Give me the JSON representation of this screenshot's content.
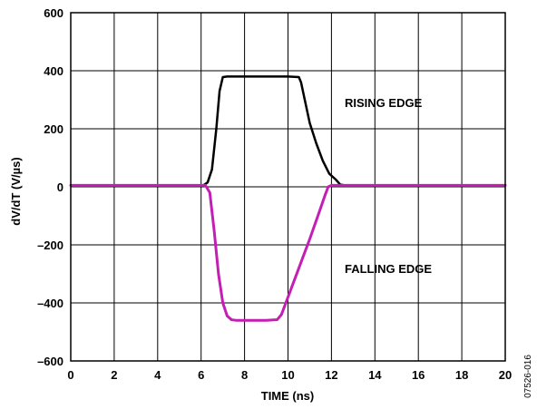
{
  "chart_data": {
    "type": "line",
    "title": "",
    "xlabel": "TIME (ns)",
    "ylabel": "dV/dT (V/µs)",
    "xlim": [
      0,
      20
    ],
    "ylim": [
      -600,
      600
    ],
    "x_ticks": [
      0,
      2,
      4,
      6,
      8,
      10,
      12,
      14,
      16,
      18,
      20
    ],
    "y_ticks": [
      600,
      400,
      200,
      0,
      -200,
      -400,
      -600
    ],
    "y_tick_labels": [
      "600",
      "400",
      "200",
      "0",
      "–200",
      "–400",
      "–600"
    ],
    "grid": true,
    "series": [
      {
        "name": "RISING EDGE",
        "color": "#000000",
        "x": [
          0,
          6.1,
          6.3,
          6.5,
          6.7,
          6.85,
          7.0,
          7.2,
          8,
          9,
          10,
          10.5,
          10.6,
          10.8,
          11.0,
          11.3,
          11.6,
          11.9,
          12.2,
          12.4,
          12.6,
          13,
          20
        ],
        "values": [
          5,
          5,
          15,
          60,
          200,
          330,
          378,
          380,
          380,
          380,
          380,
          378,
          360,
          290,
          220,
          150,
          90,
          45,
          25,
          8,
          5,
          5,
          5
        ]
      },
      {
        "name": "FALLING EDGE",
        "color": "#c41fb4",
        "x": [
          0,
          6.2,
          6.4,
          6.6,
          6.8,
          7.0,
          7.2,
          7.4,
          7.6,
          8,
          9,
          9.5,
          9.7,
          9.9,
          10.2,
          10.6,
          11.0,
          11.4,
          11.7,
          11.85,
          12.0,
          20
        ],
        "values": [
          5,
          5,
          -20,
          -150,
          -300,
          -400,
          -445,
          -458,
          -460,
          -460,
          -460,
          -458,
          -440,
          -400,
          -340,
          -260,
          -180,
          -95,
          -30,
          0,
          5,
          5
        ]
      }
    ],
    "annotations": [
      "RISING EDGE",
      "FALLING EDGE"
    ]
  },
  "figure_id": "07526-016"
}
